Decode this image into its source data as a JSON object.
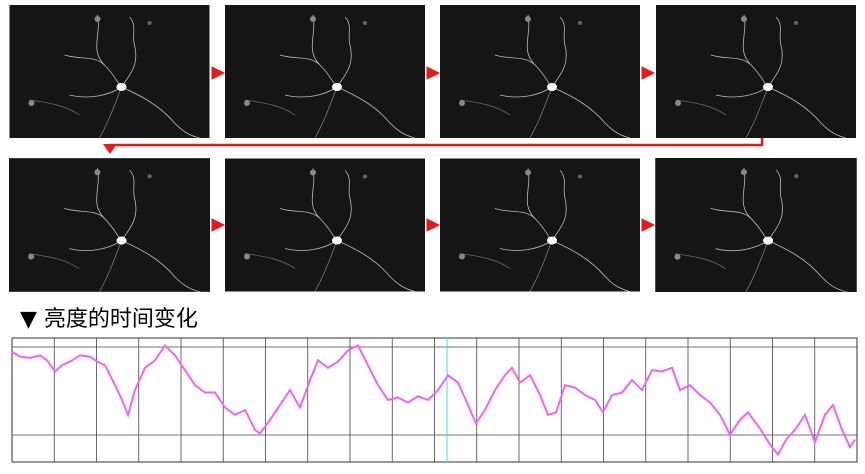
{
  "chart_data": {
    "type": "line",
    "title": "▼ 亮度的时间变化",
    "x": [
      12,
      20,
      30,
      40,
      47,
      55,
      62,
      70,
      80,
      90,
      97,
      105,
      115,
      122,
      128,
      135,
      145,
      155,
      165,
      175,
      185,
      195,
      205,
      215,
      225,
      235,
      245,
      255,
      260,
      270,
      280,
      290,
      300,
      310,
      318,
      328,
      338,
      348,
      358,
      368,
      378,
      388,
      398,
      408,
      418,
      428,
      438,
      448,
      458,
      468,
      476,
      485,
      495,
      505,
      512,
      520,
      530,
      540,
      548,
      556,
      565,
      575,
      585,
      595,
      603,
      612,
      622,
      632,
      642,
      652,
      662,
      672,
      680,
      690,
      700,
      710,
      720,
      730,
      740,
      748,
      760,
      770,
      778,
      786,
      795,
      805,
      815,
      825,
      833,
      842,
      850,
      855
    ],
    "series": [
      {
        "color": "#ee66ee",
        "values": [
          89,
          85,
          84,
          86,
          82,
          73,
          78,
          81,
          86,
          85,
          81,
          78,
          62,
          50,
          38,
          58,
          76,
          82,
          94,
          86,
          74,
          62,
          56,
          56,
          44,
          38,
          42,
          26,
          23,
          34,
          46,
          58,
          44,
          66,
          82,
          76,
          81,
          90,
          94,
          78,
          62,
          50,
          52,
          48,
          53,
          50,
          58,
          70,
          64,
          46,
          31,
          42,
          58,
          70,
          76,
          64,
          70,
          54,
          38,
          40,
          62,
          60,
          54,
          50,
          40,
          54,
          56,
          66,
          58,
          74,
          73,
          76,
          58,
          62,
          54,
          48,
          38,
          22,
          34,
          40,
          27,
          14,
          6,
          18,
          26,
          38,
          16,
          38,
          46,
          26,
          12,
          18
        ]
      }
    ],
    "xlim": [
      12,
      857
    ],
    "ylim": [
      0,
      100
    ],
    "grid": true,
    "cursor": 447,
    "cursor_color": "#44dddd"
  }
}
